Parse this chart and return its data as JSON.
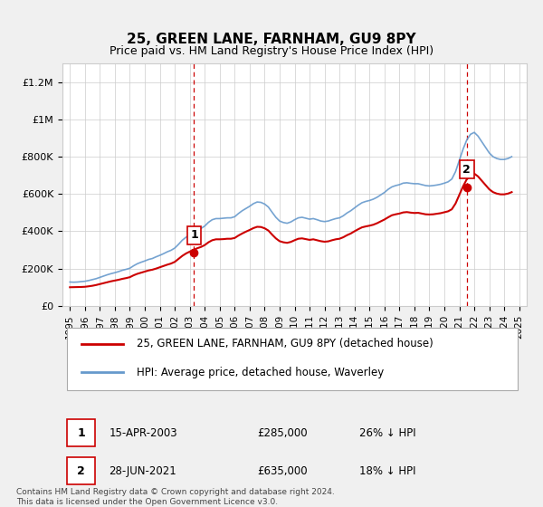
{
  "title": "25, GREEN LANE, FARNHAM, GU9 8PY",
  "subtitle": "Price paid vs. HM Land Registry's House Price Index (HPI)",
  "ylim": [
    0,
    1300000
  ],
  "yticks": [
    0,
    200000,
    400000,
    600000,
    800000,
    1000000,
    1200000
  ],
  "ytick_labels": [
    "£0",
    "£200K",
    "£400K",
    "£600K",
    "£800K",
    "£1M",
    "£1.2M"
  ],
  "xlim_start": 1994.5,
  "xlim_end": 2025.5,
  "xticks": [
    1995,
    1996,
    1997,
    1998,
    1999,
    2000,
    2001,
    2002,
    2003,
    2004,
    2005,
    2006,
    2007,
    2008,
    2009,
    2010,
    2011,
    2012,
    2013,
    2014,
    2015,
    2016,
    2017,
    2018,
    2019,
    2020,
    2021,
    2022,
    2023,
    2024,
    2025
  ],
  "background_color": "#f0f0f0",
  "plot_bg_color": "#ffffff",
  "red_line_color": "#cc0000",
  "blue_line_color": "#6699cc",
  "marker1_x": 2003.29,
  "marker1_y": 285000,
  "marker2_x": 2021.49,
  "marker2_y": 635000,
  "vline_color": "#cc0000",
  "legend_label1": "25, GREEN LANE, FARNHAM, GU9 8PY (detached house)",
  "legend_label2": "HPI: Average price, detached house, Waverley",
  "annotation1_label": "1",
  "annotation2_label": "2",
  "footer": "Contains HM Land Registry data © Crown copyright and database right 2024.\nThis data is licensed under the Open Government Licence v3.0.",
  "table_row1": [
    "1",
    "15-APR-2003",
    "£285,000",
    "26% ↓ HPI"
  ],
  "table_row2": [
    "2",
    "28-JUN-2021",
    "£635,000",
    "18% ↓ HPI"
  ],
  "hpi_data": [
    [
      1995.0,
      128000
    ],
    [
      1995.25,
      127000
    ],
    [
      1995.5,
      128000
    ],
    [
      1995.75,
      130000
    ],
    [
      1996.0,
      132000
    ],
    [
      1996.25,
      136000
    ],
    [
      1996.5,
      141000
    ],
    [
      1996.75,
      146000
    ],
    [
      1997.0,
      153000
    ],
    [
      1997.25,
      160000
    ],
    [
      1997.5,
      167000
    ],
    [
      1997.75,
      173000
    ],
    [
      1998.0,
      178000
    ],
    [
      1998.25,
      184000
    ],
    [
      1998.5,
      191000
    ],
    [
      1998.75,
      196000
    ],
    [
      1999.0,
      202000
    ],
    [
      1999.25,
      215000
    ],
    [
      1999.5,
      226000
    ],
    [
      1999.75,
      234000
    ],
    [
      2000.0,
      241000
    ],
    [
      2000.25,
      249000
    ],
    [
      2000.5,
      254000
    ],
    [
      2000.75,
      263000
    ],
    [
      2001.0,
      271000
    ],
    [
      2001.25,
      280000
    ],
    [
      2001.5,
      290000
    ],
    [
      2001.75,
      298000
    ],
    [
      2002.0,
      310000
    ],
    [
      2002.25,
      330000
    ],
    [
      2002.5,
      352000
    ],
    [
      2002.75,
      368000
    ],
    [
      2003.0,
      381000
    ],
    [
      2003.25,
      393000
    ],
    [
      2003.5,
      405000
    ],
    [
      2003.75,
      415000
    ],
    [
      2004.0,
      428000
    ],
    [
      2004.25,
      448000
    ],
    [
      2004.5,
      462000
    ],
    [
      2004.75,
      468000
    ],
    [
      2005.0,
      468000
    ],
    [
      2005.25,
      470000
    ],
    [
      2005.5,
      472000
    ],
    [
      2005.75,
      472000
    ],
    [
      2006.0,
      478000
    ],
    [
      2006.25,
      495000
    ],
    [
      2006.5,
      510000
    ],
    [
      2006.75,
      522000
    ],
    [
      2007.0,
      534000
    ],
    [
      2007.25,
      548000
    ],
    [
      2007.5,
      557000
    ],
    [
      2007.75,
      555000
    ],
    [
      2008.0,
      546000
    ],
    [
      2008.25,
      530000
    ],
    [
      2008.5,
      502000
    ],
    [
      2008.75,
      475000
    ],
    [
      2009.0,
      455000
    ],
    [
      2009.25,
      447000
    ],
    [
      2009.5,
      443000
    ],
    [
      2009.75,
      450000
    ],
    [
      2010.0,
      462000
    ],
    [
      2010.25,
      472000
    ],
    [
      2010.5,
      475000
    ],
    [
      2010.75,
      470000
    ],
    [
      2011.0,
      465000
    ],
    [
      2011.25,
      468000
    ],
    [
      2011.5,
      462000
    ],
    [
      2011.75,
      455000
    ],
    [
      2012.0,
      452000
    ],
    [
      2012.25,
      455000
    ],
    [
      2012.5,
      462000
    ],
    [
      2012.75,
      468000
    ],
    [
      2013.0,
      472000
    ],
    [
      2013.25,
      483000
    ],
    [
      2013.5,
      498000
    ],
    [
      2013.75,
      510000
    ],
    [
      2014.0,
      525000
    ],
    [
      2014.25,
      540000
    ],
    [
      2014.5,
      553000
    ],
    [
      2014.75,
      560000
    ],
    [
      2015.0,
      565000
    ],
    [
      2015.25,
      572000
    ],
    [
      2015.5,
      582000
    ],
    [
      2015.75,
      595000
    ],
    [
      2016.0,
      608000
    ],
    [
      2016.25,
      625000
    ],
    [
      2016.5,
      638000
    ],
    [
      2016.75,
      645000
    ],
    [
      2017.0,
      650000
    ],
    [
      2017.25,
      658000
    ],
    [
      2017.5,
      660000
    ],
    [
      2017.75,
      657000
    ],
    [
      2018.0,
      655000
    ],
    [
      2018.25,
      655000
    ],
    [
      2018.5,
      650000
    ],
    [
      2018.75,
      645000
    ],
    [
      2019.0,
      643000
    ],
    [
      2019.25,
      645000
    ],
    [
      2019.5,
      648000
    ],
    [
      2019.75,
      652000
    ],
    [
      2020.0,
      658000
    ],
    [
      2020.25,
      665000
    ],
    [
      2020.5,
      680000
    ],
    [
      2020.75,
      720000
    ],
    [
      2021.0,
      780000
    ],
    [
      2021.25,
      840000
    ],
    [
      2021.5,
      890000
    ],
    [
      2021.75,
      920000
    ],
    [
      2022.0,
      930000
    ],
    [
      2022.25,
      910000
    ],
    [
      2022.5,
      880000
    ],
    [
      2022.75,
      850000
    ],
    [
      2023.0,
      820000
    ],
    [
      2023.25,
      800000
    ],
    [
      2023.5,
      790000
    ],
    [
      2023.75,
      785000
    ],
    [
      2024.0,
      785000
    ],
    [
      2024.25,
      790000
    ],
    [
      2024.5,
      800000
    ]
  ],
  "red_data": [
    [
      1995.0,
      100000
    ],
    [
      1995.25,
      100500
    ],
    [
      1995.5,
      101000
    ],
    [
      1995.75,
      101500
    ],
    [
      1996.0,
      102500
    ],
    [
      1996.25,
      105000
    ],
    [
      1996.5,
      108000
    ],
    [
      1996.75,
      112000
    ],
    [
      1997.0,
      117000
    ],
    [
      1997.25,
      122000
    ],
    [
      1997.5,
      127000
    ],
    [
      1997.75,
      132000
    ],
    [
      1998.0,
      136000
    ],
    [
      1998.25,
      140000
    ],
    [
      1998.5,
      145000
    ],
    [
      1998.75,
      149000
    ],
    [
      1999.0,
      154000
    ],
    [
      1999.25,
      164000
    ],
    [
      1999.5,
      172000
    ],
    [
      1999.75,
      178000
    ],
    [
      2000.0,
      184000
    ],
    [
      2000.25,
      190000
    ],
    [
      2000.5,
      194000
    ],
    [
      2000.75,
      200000
    ],
    [
      2001.0,
      207000
    ],
    [
      2001.25,
      214000
    ],
    [
      2001.5,
      221000
    ],
    [
      2001.75,
      227000
    ],
    [
      2002.0,
      236000
    ],
    [
      2002.25,
      252000
    ],
    [
      2002.5,
      268000
    ],
    [
      2002.75,
      281000
    ],
    [
      2003.0,
      291000
    ],
    [
      2003.25,
      300000
    ],
    [
      2003.5,
      309000
    ],
    [
      2003.75,
      316000
    ],
    [
      2004.0,
      326000
    ],
    [
      2004.25,
      341000
    ],
    [
      2004.5,
      352000
    ],
    [
      2004.75,
      357000
    ],
    [
      2005.0,
      357000
    ],
    [
      2005.25,
      358000
    ],
    [
      2005.5,
      360000
    ],
    [
      2005.75,
      360000
    ],
    [
      2006.0,
      364000
    ],
    [
      2006.25,
      377000
    ],
    [
      2006.5,
      388000
    ],
    [
      2006.75,
      398000
    ],
    [
      2007.0,
      407000
    ],
    [
      2007.25,
      417000
    ],
    [
      2007.5,
      424000
    ],
    [
      2007.75,
      423000
    ],
    [
      2008.0,
      416000
    ],
    [
      2008.25,
      404000
    ],
    [
      2008.5,
      382000
    ],
    [
      2008.75,
      362000
    ],
    [
      2009.0,
      347000
    ],
    [
      2009.25,
      341000
    ],
    [
      2009.5,
      338000
    ],
    [
      2009.75,
      343000
    ],
    [
      2010.0,
      352000
    ],
    [
      2010.25,
      360000
    ],
    [
      2010.5,
      362000
    ],
    [
      2010.75,
      358000
    ],
    [
      2011.0,
      354000
    ],
    [
      2011.25,
      357000
    ],
    [
      2011.5,
      352000
    ],
    [
      2011.75,
      347000
    ],
    [
      2012.0,
      344000
    ],
    [
      2012.25,
      346000
    ],
    [
      2012.5,
      352000
    ],
    [
      2012.75,
      357000
    ],
    [
      2013.0,
      360000
    ],
    [
      2013.25,
      368000
    ],
    [
      2013.5,
      379000
    ],
    [
      2013.75,
      388000
    ],
    [
      2014.0,
      400000
    ],
    [
      2014.25,
      411000
    ],
    [
      2014.5,
      421000
    ],
    [
      2014.75,
      426000
    ],
    [
      2015.0,
      430000
    ],
    [
      2015.25,
      435000
    ],
    [
      2015.5,
      443000
    ],
    [
      2015.75,
      453000
    ],
    [
      2016.0,
      463000
    ],
    [
      2016.25,
      475000
    ],
    [
      2016.5,
      486000
    ],
    [
      2016.75,
      491000
    ],
    [
      2017.0,
      495000
    ],
    [
      2017.25,
      501000
    ],
    [
      2017.5,
      503000
    ],
    [
      2017.75,
      500000
    ],
    [
      2018.0,
      498000
    ],
    [
      2018.25,
      499000
    ],
    [
      2018.5,
      495000
    ],
    [
      2018.75,
      491000
    ],
    [
      2019.0,
      490000
    ],
    [
      2019.25,
      491000
    ],
    [
      2019.5,
      494000
    ],
    [
      2019.75,
      497000
    ],
    [
      2020.0,
      502000
    ],
    [
      2020.25,
      507000
    ],
    [
      2020.5,
      518000
    ],
    [
      2020.75,
      549000
    ],
    [
      2021.0,
      595000
    ],
    [
      2021.25,
      641000
    ],
    [
      2021.5,
      679000
    ],
    [
      2021.75,
      701000
    ],
    [
      2022.0,
      709000
    ],
    [
      2022.25,
      694000
    ],
    [
      2022.5,
      671000
    ],
    [
      2022.75,
      648000
    ],
    [
      2023.0,
      625000
    ],
    [
      2023.25,
      610000
    ],
    [
      2023.5,
      602000
    ],
    [
      2023.75,
      598000
    ],
    [
      2024.0,
      598000
    ],
    [
      2024.25,
      602000
    ],
    [
      2024.5,
      610000
    ]
  ]
}
